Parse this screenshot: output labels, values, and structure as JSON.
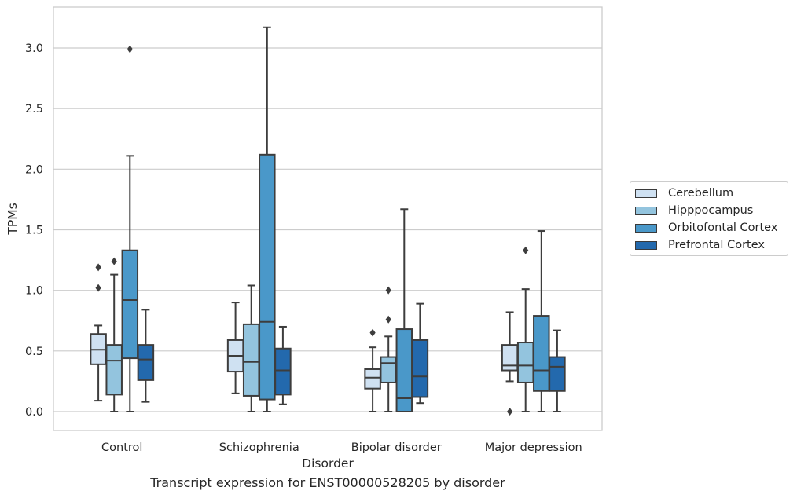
{
  "chart_data": {
    "type": "boxplot",
    "xlabel": "Disorder",
    "ylabel": "TPMs",
    "ylim": [
      -0.15,
      3.3
    ],
    "yticks": [
      0.0,
      0.5,
      1.0,
      1.5,
      2.0,
      2.5,
      3.0
    ],
    "ytick_labels": [
      "0.0",
      "0.5",
      "1.0",
      "1.5",
      "2.0",
      "2.5",
      "3.0"
    ],
    "grid": "horizontal",
    "legend_position": "right",
    "categories": [
      "Control",
      "Schizophrenia",
      "Bipolar disorder",
      "Major depression"
    ],
    "series": [
      {
        "name": "Cerebellum",
        "color": "#cfe1f2",
        "boxes": [
          {
            "whislo": 0.09,
            "q1": 0.39,
            "med": 0.51,
            "q3": 0.64,
            "whishi": 0.71,
            "fliers": [
              1.02,
              1.19
            ]
          },
          {
            "whislo": 0.15,
            "q1": 0.33,
            "med": 0.46,
            "q3": 0.59,
            "whishi": 0.9,
            "fliers": []
          },
          {
            "whislo": 0.0,
            "q1": 0.19,
            "med": 0.28,
            "q3": 0.35,
            "whishi": 0.53,
            "fliers": [
              0.65
            ]
          },
          {
            "whislo": 0.25,
            "q1": 0.34,
            "med": 0.38,
            "q3": 0.55,
            "whishi": 0.82,
            "fliers": [
              0.0
            ]
          }
        ]
      },
      {
        "name": "Hipppocampus",
        "color": "#93c4de",
        "boxes": [
          {
            "whislo": 0.0,
            "q1": 0.14,
            "med": 0.42,
            "q3": 0.55,
            "whishi": 1.13,
            "fliers": [
              1.24
            ]
          },
          {
            "whislo": 0.0,
            "q1": 0.13,
            "med": 0.41,
            "q3": 0.72,
            "whishi": 1.04,
            "fliers": []
          },
          {
            "whislo": 0.0,
            "q1": 0.24,
            "med": 0.4,
            "q3": 0.45,
            "whishi": 0.62,
            "fliers": [
              0.76,
              1.0
            ]
          },
          {
            "whislo": 0.0,
            "q1": 0.24,
            "med": 0.38,
            "q3": 0.57,
            "whishi": 1.01,
            "fliers": [
              1.33
            ]
          }
        ]
      },
      {
        "name": "Orbitofontal Cortex",
        "color": "#4a98c9",
        "boxes": [
          {
            "whislo": 0.0,
            "q1": 0.44,
            "med": 0.92,
            "q3": 1.33,
            "whishi": 2.11,
            "fliers": [
              2.99
            ]
          },
          {
            "whislo": 0.0,
            "q1": 0.1,
            "med": 0.74,
            "q3": 2.12,
            "whishi": 3.17,
            "fliers": []
          },
          {
            "whislo": 0.0,
            "q1": 0.0,
            "med": 0.11,
            "q3": 0.68,
            "whishi": 1.67,
            "fliers": []
          },
          {
            "whislo": 0.0,
            "q1": 0.17,
            "med": 0.34,
            "q3": 0.79,
            "whishi": 1.49,
            "fliers": []
          }
        ]
      },
      {
        "name": "Prefrontal Cortex",
        "color": "#2369ad",
        "boxes": [
          {
            "whislo": 0.08,
            "q1": 0.26,
            "med": 0.43,
            "q3": 0.55,
            "whishi": 0.84,
            "fliers": []
          },
          {
            "whislo": 0.06,
            "q1": 0.14,
            "med": 0.34,
            "q3": 0.52,
            "whishi": 0.7,
            "fliers": []
          },
          {
            "whislo": 0.07,
            "q1": 0.12,
            "med": 0.29,
            "q3": 0.59,
            "whishi": 0.89,
            "fliers": []
          },
          {
            "whislo": 0.0,
            "q1": 0.17,
            "med": 0.37,
            "q3": 0.45,
            "whishi": 0.67,
            "fliers": []
          }
        ]
      }
    ]
  },
  "caption": "Transcript expression for ENST00000528205 by disorder"
}
